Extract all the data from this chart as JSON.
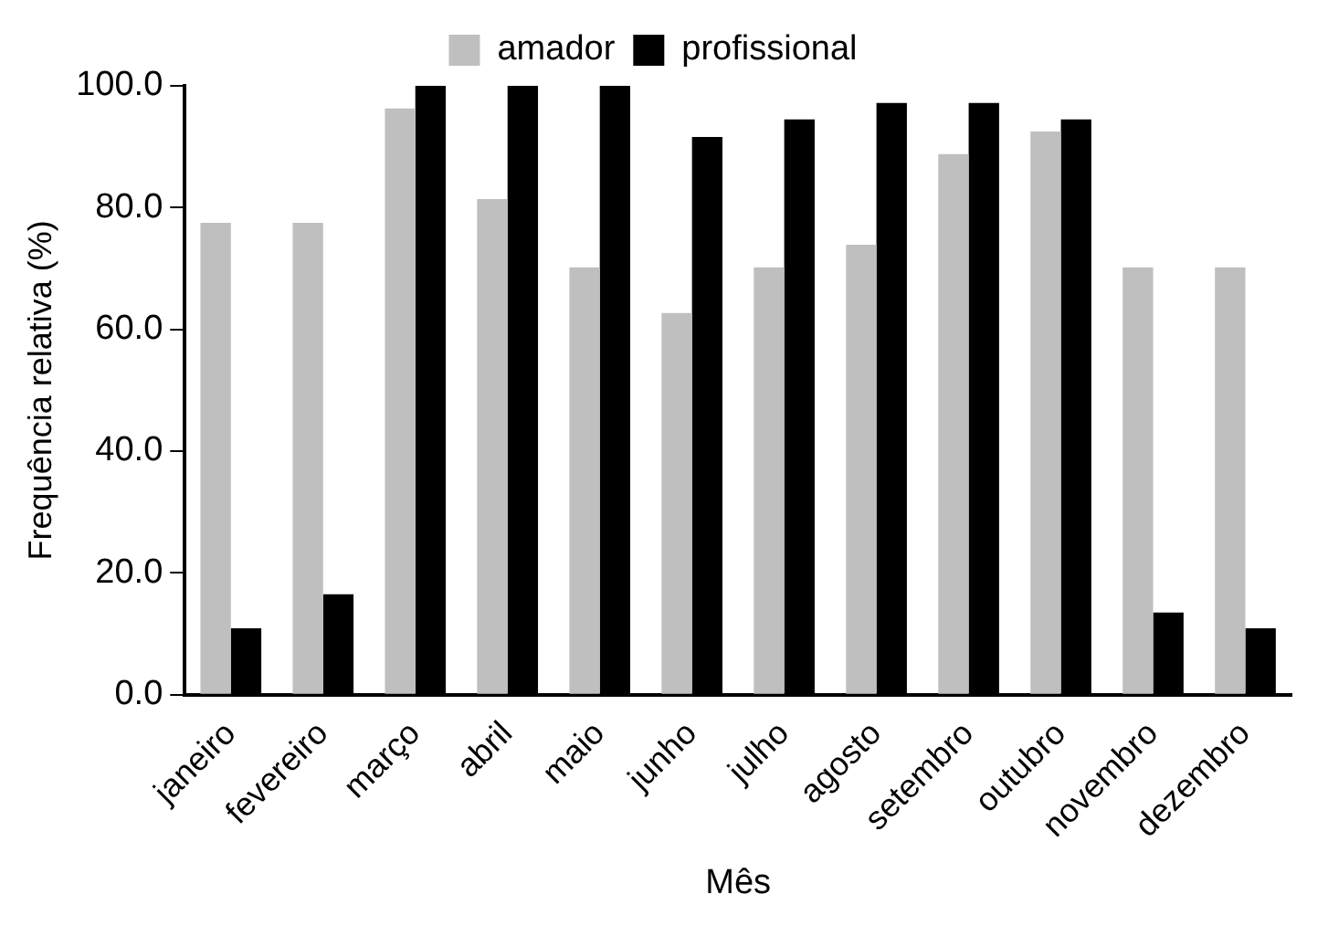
{
  "chart_data": {
    "type": "bar",
    "xlabel": "Mês",
    "ylabel": "Frequência relativa (%)",
    "categories": [
      "janeiro",
      "fevereiro",
      "março",
      "abril",
      "maio",
      "junho",
      "julho",
      "agosto",
      "setembro",
      "outubro",
      "novembro",
      "dezembro"
    ],
    "series": [
      {
        "name": "amador",
        "color": "#bfbfbf",
        "values": [
          77.5,
          77.5,
          96.3,
          81.4,
          70.2,
          62.7,
          70.2,
          73.9,
          88.8,
          92.5,
          70.2,
          70.2
        ]
      },
      {
        "name": "profissional",
        "color": "#000000",
        "values": [
          10.9,
          16.5,
          100,
          100,
          100,
          91.6,
          94.5,
          97.2,
          97.2,
          94.5,
          13.5,
          10.9
        ]
      }
    ],
    "ylim": [
      0,
      100
    ],
    "yticks": [
      {
        "value": 0,
        "label": "0.0"
      },
      {
        "value": 20,
        "label": "20.0"
      },
      {
        "value": 40,
        "label": "40.0"
      },
      {
        "value": 60,
        "label": "60.0"
      },
      {
        "value": 80,
        "label": "80.0"
      },
      {
        "value": 100,
        "label": "100.0"
      }
    ],
    "grid": false,
    "legend": "top"
  }
}
